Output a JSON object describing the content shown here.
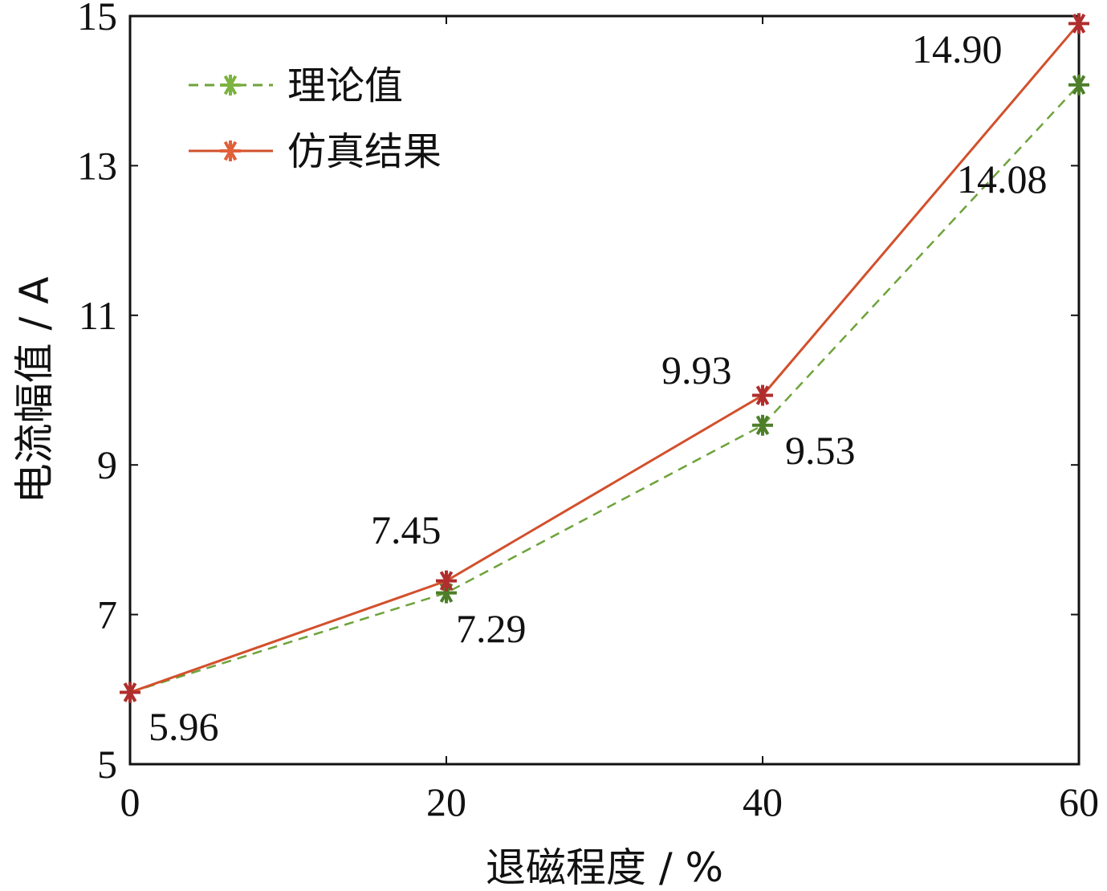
{
  "chart_data": {
    "type": "line",
    "xlabel": "退磁程度 / %",
    "ylabel": "电流幅值 / A",
    "xlim": [
      0,
      60
    ],
    "ylim": [
      5,
      15
    ],
    "xticks": [
      0,
      20,
      40,
      60
    ],
    "yticks": [
      5,
      7,
      9,
      11,
      13,
      15
    ],
    "grid": false,
    "legend_position": "top-left",
    "x": [
      0,
      20,
      40,
      60
    ],
    "series": [
      {
        "name": "理论值",
        "values": [
          5.96,
          7.29,
          9.53,
          14.08
        ],
        "labels": [
          "",
          "7.29",
          "9.53",
          "14.08"
        ],
        "color": "#6ea33a",
        "marker_color": "#4d7f2a",
        "line_style": "dashed"
      },
      {
        "name": "仿真结果",
        "values": [
          5.96,
          7.45,
          9.93,
          14.9
        ],
        "labels": [
          "5.96",
          "7.45",
          "9.93",
          "14.90"
        ],
        "color": "#d2502c",
        "marker_color": "#b02e2e",
        "line_style": "solid"
      }
    ]
  }
}
